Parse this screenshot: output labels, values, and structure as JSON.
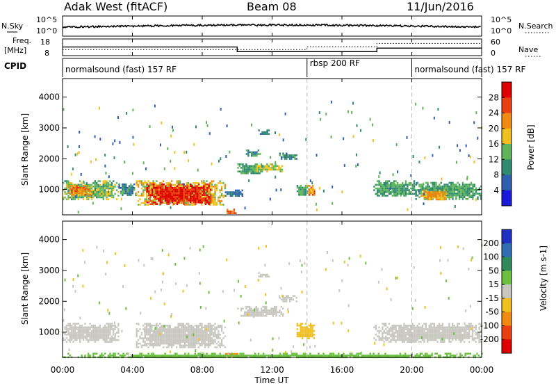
{
  "header": {
    "radar": "Adak West (fitACF)",
    "beam": "Beam 08",
    "date": "11/Jun/2016"
  },
  "strip_labels": {
    "nsky": "N.Sky",
    "nsearch": "N.Search",
    "freq_line1": "Freq.",
    "freq_line2": "[MHz]",
    "nave": "Nave",
    "cpid": "CPID"
  },
  "strip_ticks": {
    "nsky_top": "10^5",
    "nsky_bottom": "10^0",
    "nsearch_top": "10^5",
    "nsearch_bottom": "10^0",
    "freq_top": "18",
    "freq_bottom": "8",
    "nave_top": "60",
    "nave_bottom": "0"
  },
  "cpid_segments": [
    {
      "label": "normalsound (fast) 157 RF",
      "start_hour": 0
    },
    {
      "label": "rbsp 200 RF",
      "start_hour": 14
    },
    {
      "label": "normalsound (fast) 157 RF",
      "start_hour": 20
    }
  ],
  "freq_trace": [
    {
      "from": 0,
      "to": 10,
      "mhz": 13.2
    },
    {
      "from": 10,
      "to": 18,
      "mhz": 10.4
    },
    {
      "from": 18,
      "to": 24,
      "mhz": 12.5
    }
  ],
  "nave_trace": [
    {
      "from": 0,
      "to": 14,
      "value": 22
    },
    {
      "from": 14,
      "to": 18,
      "value": 32
    },
    {
      "from": 18,
      "to": 24,
      "value": 44
    }
  ],
  "chart_data": {
    "type": "heatmap",
    "x_ticks": [
      "00:00",
      "04:00",
      "08:00",
      "12:00",
      "16:00",
      "20:00",
      "00:00"
    ],
    "x_tick_hours": [
      0,
      4,
      8,
      12,
      16,
      20,
      24
    ],
    "xlabel": "Time UT",
    "xlim": [
      0,
      24
    ],
    "ylabel_power": "Slant Range [km]",
    "ylabel_velocity": "Slant Range [km]",
    "ylim": [
      180,
      4600
    ],
    "y_ticks": [
      1000,
      2000,
      3000,
      4000
    ],
    "y_tick_labels": [
      "1000",
      "2000",
      "3000",
      "4000"
    ],
    "mode_change_hours": [
      14,
      20
    ],
    "power_colorbar": {
      "label": "Power [dB]",
      "ticks": [
        "4",
        "8",
        "12",
        "16",
        "20",
        "24",
        "28"
      ],
      "colors": [
        "#1a1adb",
        "#2e5fb0",
        "#2f8a6e",
        "#5fb65a",
        "#f0c020",
        "#f08a10",
        "#e84010",
        "#e00000"
      ]
    },
    "velocity_colorbar": {
      "label": "Velocity [m s-1]",
      "ticks": [
        "200",
        "100",
        "50",
        "15",
        "-15",
        "-50",
        "-100",
        "-200"
      ],
      "colors": [
        "#2030c0",
        "#2d6fb0",
        "#2f8a5a",
        "#6cc040",
        "#c8c8c0",
        "#f0c020",
        "#f08a10",
        "#e84010",
        "#e00000"
      ]
    },
    "power_regions": [
      {
        "t0": 0.0,
        "t1": 3.2,
        "r0": 700,
        "r1": 1300,
        "level": 14
      },
      {
        "t0": 0.3,
        "t1": 1.6,
        "r0": 800,
        "r1": 1150,
        "level": 22
      },
      {
        "t0": 3.2,
        "t1": 4.2,
        "r0": 800,
        "r1": 1200,
        "level": 10
      },
      {
        "t0": 4.2,
        "t1": 9.3,
        "r0": 500,
        "r1": 1300,
        "level": 18
      },
      {
        "t0": 4.8,
        "t1": 8.5,
        "r0": 550,
        "r1": 1200,
        "level": 28
      },
      {
        "t0": 9.2,
        "t1": 10.3,
        "r0": 800,
        "r1": 1000,
        "level": 8
      },
      {
        "t0": 9.3,
        "t1": 10.0,
        "r0": 230,
        "r1": 380,
        "level": 24
      },
      {
        "t0": 10.0,
        "t1": 11.4,
        "r0": 1500,
        "r1": 1850,
        "level": 12
      },
      {
        "t0": 10.5,
        "t1": 11.3,
        "r0": 2100,
        "r1": 2300,
        "level": 10
      },
      {
        "t0": 11.0,
        "t1": 12.6,
        "r0": 1600,
        "r1": 1850,
        "level": 16
      },
      {
        "t0": 12.4,
        "t1": 13.4,
        "r0": 2000,
        "r1": 2200,
        "level": 10
      },
      {
        "t0": 11.2,
        "t1": 11.8,
        "r0": 2800,
        "r1": 2950,
        "level": 8
      },
      {
        "t0": 13.4,
        "t1": 14.1,
        "r0": 800,
        "r1": 1150,
        "level": 12
      },
      {
        "t0": 14.0,
        "t1": 14.4,
        "r0": 850,
        "r1": 1150,
        "level": 22
      },
      {
        "t0": 17.8,
        "t1": 20.2,
        "r0": 800,
        "r1": 1300,
        "level": 12
      },
      {
        "t0": 20.2,
        "t1": 24.0,
        "r0": 700,
        "r1": 1250,
        "level": 12
      },
      {
        "t0": 20.5,
        "t1": 22.0,
        "r0": 650,
        "r1": 1000,
        "level": 20
      }
    ],
    "velocity_regions": [
      {
        "t0": 0.0,
        "t1": 3.2,
        "r0": 700,
        "r1": 1300,
        "v": 0
      },
      {
        "t0": 4.2,
        "t1": 9.3,
        "r0": 500,
        "r1": 1300,
        "v": 0
      },
      {
        "t0": 9.3,
        "t1": 10.0,
        "r0": 230,
        "r1": 380,
        "v": -60
      },
      {
        "t0": 10.0,
        "t1": 12.6,
        "r0": 1500,
        "r1": 1850,
        "v": 0
      },
      {
        "t0": 12.4,
        "t1": 13.4,
        "r0": 2000,
        "r1": 2200,
        "v": 0
      },
      {
        "t0": 11.2,
        "t1": 11.8,
        "r0": 2800,
        "r1": 2950,
        "v": 0
      },
      {
        "t0": 13.4,
        "t1": 14.4,
        "r0": 800,
        "r1": 1300,
        "v": -40
      },
      {
        "t0": 17.8,
        "t1": 24.0,
        "r0": 700,
        "r1": 1300,
        "v": 0
      },
      {
        "t0": 0.0,
        "t1": 24.0,
        "r0": 180,
        "r1": 330,
        "v": 25
      }
    ]
  }
}
